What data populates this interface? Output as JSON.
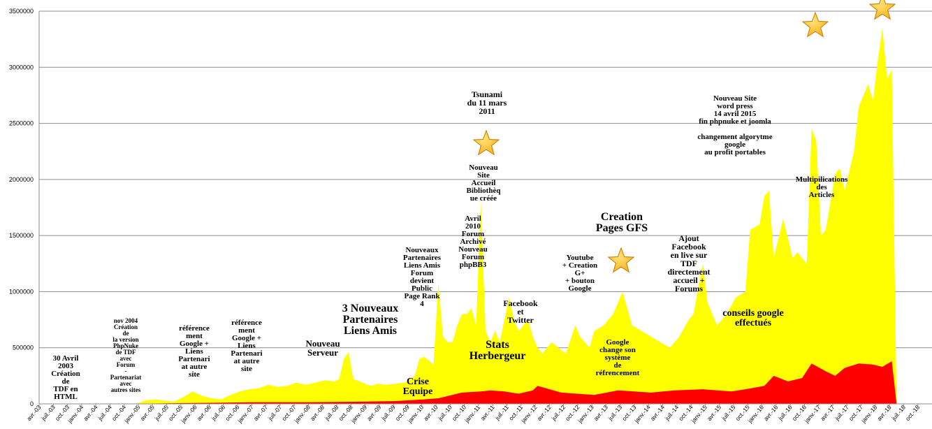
{
  "chart_data": {
    "type": "area",
    "title": "",
    "xlabel": "",
    "ylabel": "",
    "ylim": [
      0,
      3500000
    ],
    "yticks": [
      0,
      500000,
      1000000,
      1500000,
      2000000,
      2500000,
      3000000,
      3500000
    ],
    "ytick_labels": [
      "0",
      "500000",
      "1000000",
      "1500000",
      "2000000",
      "2500000",
      "3000000",
      "3500000"
    ],
    "grid": true,
    "legend": "none",
    "xlim": [
      "2003-04",
      "2018-10"
    ],
    "x_tick_labels": [
      "avr.-03",
      "juil.-03",
      "oct.-03",
      "janv.-04",
      "avr.-04",
      "juil.-04",
      "oct.-04",
      "janv.-05",
      "avr.-05",
      "juil.-05",
      "oct.-05",
      "janv.-06",
      "avr.-06",
      "juil.-06",
      "oct.-06",
      "janv.-07",
      "avr.-07",
      "juil.-07",
      "oct.-07",
      "janv.-08",
      "avr.-08",
      "juil.-08",
      "oct.-08",
      "janv.-09",
      "avr.-09",
      "juil.-09",
      "oct.-09",
      "janv.-10",
      "avr.-10",
      "juil.-10",
      "oct.-10",
      "janv.-11",
      "avr.-11",
      "juil.-11",
      "oct.-11",
      "janv.-12",
      "avr.-12",
      "juil.-12",
      "oct.-12",
      "janv.-13",
      "avr.-13",
      "juil.-13",
      "oct.-13",
      "janv.-14",
      "avr.-14",
      "juil.-14",
      "oct.-14",
      "janv.-15",
      "avr.-15",
      "juil.-15",
      "oct.-15",
      "janv.-16",
      "avr.-16",
      "juil.-16",
      "oct.-16",
      "janv.-17",
      "avr.-17",
      "juil.-17",
      "oct.-17",
      "janv.-18",
      "avr.-18",
      "juil.-18",
      "oct.-18"
    ],
    "colors": {
      "series1": "#ffff00",
      "series2": "#ff0000",
      "grid": "#8c8c8c",
      "star_fill": "#ffb11a",
      "star_stroke": "#c77700"
    },
    "series": [
      {
        "x": [
          "2003-04",
          "2003-08",
          "2003-12",
          "2004-04",
          "2004-08",
          "2004-11",
          "2004-12",
          "2005-02",
          "2005-04",
          "2005-06",
          "2005-08",
          "2005-10",
          "2005-12",
          "2006-02",
          "2006-04",
          "2006-06",
          "2006-08",
          "2006-10",
          "2006-12",
          "2007-02",
          "2007-04",
          "2007-06",
          "2007-08",
          "2007-10",
          "2007-12",
          "2008-02",
          "2008-04",
          "2008-06",
          "2008-07",
          "2008-08",
          "2008-09",
          "2008-10",
          "2008-12",
          "2009-01",
          "2009-02",
          "2009-03",
          "2009-05",
          "2009-07",
          "2009-09",
          "2009-11",
          "2009-12",
          "2010-01",
          "2010-03",
          "2010-04",
          "2010-05",
          "2010-06",
          "2010-07",
          "2010-08",
          "2010-09",
          "2010-10",
          "2010-11",
          "2010-12",
          "2011-01",
          "2011-02",
          "2011-03",
          "2011-04",
          "2011-05",
          "2011-06",
          "2011-07",
          "2011-08",
          "2011-09",
          "2011-10",
          "2011-11",
          "2011-12",
          "2012-01",
          "2012-02",
          "2012-04",
          "2012-06",
          "2012-07",
          "2012-09",
          "2012-10",
          "2012-12",
          "2013-01",
          "2013-03",
          "2013-05",
          "2013-07",
          "2013-08",
          "2013-09",
          "2013-11",
          "2014-01",
          "2014-03",
          "2014-05",
          "2014-07",
          "2014-09",
          "2014-10",
          "2014-12",
          "2015-01",
          "2015-03",
          "2015-05",
          "2015-07",
          "2015-09",
          "2015-10",
          "2015-12",
          "2016-01",
          "2016-02",
          "2016-03",
          "2016-05",
          "2016-07",
          "2016-08",
          "2016-10",
          "2016-11",
          "2016-12",
          "2017-01",
          "2017-02",
          "2017-03",
          "2017-04",
          "2017-05",
          "2017-06",
          "2017-08",
          "2017-09",
          "2017-11",
          "2017-12",
          "2018-01",
          "2018-02",
          "2018-03",
          "2018-04",
          "2018-05"
        ],
        "values": [
          0,
          0,
          0,
          0,
          0,
          0,
          0,
          30000,
          40000,
          30000,
          20000,
          60000,
          110000,
          70000,
          50000,
          40000,
          80000,
          110000,
          130000,
          140000,
          170000,
          150000,
          160000,
          190000,
          170000,
          190000,
          210000,
          200000,
          220000,
          400000,
          460000,
          220000,
          190000,
          170000,
          160000,
          180000,
          170000,
          180000,
          190000,
          250000,
          400000,
          420000,
          350000,
          1080000,
          600000,
          550000,
          550000,
          700000,
          800000,
          800000,
          850000,
          700000,
          1800000,
          650000,
          550000,
          650000,
          550000,
          750000,
          950000,
          750000,
          650000,
          700000,
          750000,
          600000,
          500000,
          450000,
          550000,
          480000,
          450000,
          700000,
          600000,
          500000,
          650000,
          700000,
          800000,
          1000000,
          850000,
          700000,
          650000,
          600000,
          550000,
          500000,
          600000,
          750000,
          800000,
          1250000,
          900000,
          700000,
          800000,
          950000,
          1000000,
          1550000,
          1600000,
          1850000,
          1900000,
          1300000,
          1650000,
          1300000,
          1350000,
          1250000,
          2450000,
          2350000,
          1500000,
          1550000,
          1800000,
          2050000,
          2100000,
          1900000,
          2250000,
          2650000,
          2850000,
          2700000,
          3050000,
          3350000,
          2900000,
          2980000,
          0
        ]
      },
      {
        "x": [
          "2003-04",
          "2004-11",
          "2005-06",
          "2006-06",
          "2007-01",
          "2008-01",
          "2009-01",
          "2009-07",
          "2010-01",
          "2010-04",
          "2010-06",
          "2010-09",
          "2011-01",
          "2011-03",
          "2011-06",
          "2011-09",
          "2011-12",
          "2012-01",
          "2012-06",
          "2013-01",
          "2013-06",
          "2014-01",
          "2014-06",
          "2014-12",
          "2015-06",
          "2015-09",
          "2016-01",
          "2016-03",
          "2016-06",
          "2016-09",
          "2016-11",
          "2017-02",
          "2017-04",
          "2017-06",
          "2017-09",
          "2017-12",
          "2018-02",
          "2018-04",
          "2018-05"
        ],
        "values": [
          0,
          0,
          5000,
          10000,
          15000,
          15000,
          20000,
          25000,
          40000,
          50000,
          70000,
          100000,
          110000,
          120000,
          110000,
          90000,
          120000,
          160000,
          100000,
          80000,
          120000,
          100000,
          120000,
          130000,
          110000,
          130000,
          160000,
          250000,
          200000,
          230000,
          360000,
          290000,
          250000,
          320000,
          360000,
          350000,
          330000,
          380000,
          0
        ]
      }
    ],
    "annotations": [
      {
        "lines": [
          "30 Avril",
          "2003",
          "Création",
          "de",
          "TDF en",
          "HTML"
        ],
        "size": 11
      },
      {
        "lines": [
          "nov 2004",
          "Création",
          "de",
          "la version",
          "PhpNuke",
          "de TDF",
          "avec",
          "Forum",
          "-",
          "Partenariat",
          "avec",
          "autres sites"
        ],
        "size": 9
      },
      {
        "lines": [
          "référence",
          "ment",
          "Google +",
          "Liens",
          "Partenari",
          "at autre",
          "site"
        ],
        "size": 11
      },
      {
        "lines": [
          "référence",
          "ment",
          "Google +",
          "Liens",
          "Partenari",
          "at autre",
          "site"
        ],
        "size": 11
      },
      {
        "lines": [
          "Nouveau",
          "Serveur"
        ],
        "size": 13
      },
      {
        "lines": [
          "3 Nouveaux",
          "Partenaires",
          "Liens Amis"
        ],
        "size": 16
      },
      {
        "lines": [
          "Crise",
          "Equipe"
        ],
        "size": 14
      },
      {
        "lines": [
          "Nouveaux",
          "Partenaires",
          "Liens Amis",
          "Forum",
          "devient",
          "Public",
          "Page Rank",
          "4"
        ],
        "size": 11
      },
      {
        "lines": [
          "Avril",
          "2010",
          "Forum",
          "Archivé",
          "Nouveau",
          "Forum",
          "phpBB3"
        ],
        "size": 11
      },
      {
        "lines": [
          "Tsunami",
          "du 11 mars",
          "2011"
        ],
        "size": 12
      },
      {
        "lines": [
          "Nouveau",
          "Site",
          "Accueil",
          "Bibliothèq",
          "ue créée"
        ],
        "size": 11
      },
      {
        "lines": [
          "Stats",
          "Herbergeur"
        ],
        "size": 16
      },
      {
        "lines": [
          "Facebook",
          "et",
          "Twitter"
        ],
        "size": 12
      },
      {
        "lines": [
          "Youtube",
          "+ Creation",
          "G+",
          "+ bouton",
          "Google"
        ],
        "size": 11
      },
      {
        "lines": [
          "Creation",
          "Pages GFS"
        ],
        "size": 16
      },
      {
        "lines": [
          "Google",
          "change son",
          "système",
          "de",
          "réfrencement"
        ],
        "size": 11
      },
      {
        "lines": [
          "Ajout",
          "Facebook",
          "en live sur",
          "TDF",
          "directement",
          "accueil +",
          "Forums"
        ],
        "size": 12
      },
      {
        "lines": [
          "conseils google",
          "effectués"
        ],
        "size": 14
      },
      {
        "lines": [
          "Nouveau Site",
          "word press",
          "14 avril 2015",
          "fin phpnuke et joomla",
          "",
          "changement algorytme",
          "google",
          "au profit portables"
        ],
        "size": 11
      },
      {
        "lines": [
          "Multipilications",
          "des",
          "Articles"
        ],
        "size": 11
      }
    ],
    "star_markers": [
      "2011-02",
      "2013-06",
      "2016-12",
      "2018-03"
    ]
  }
}
